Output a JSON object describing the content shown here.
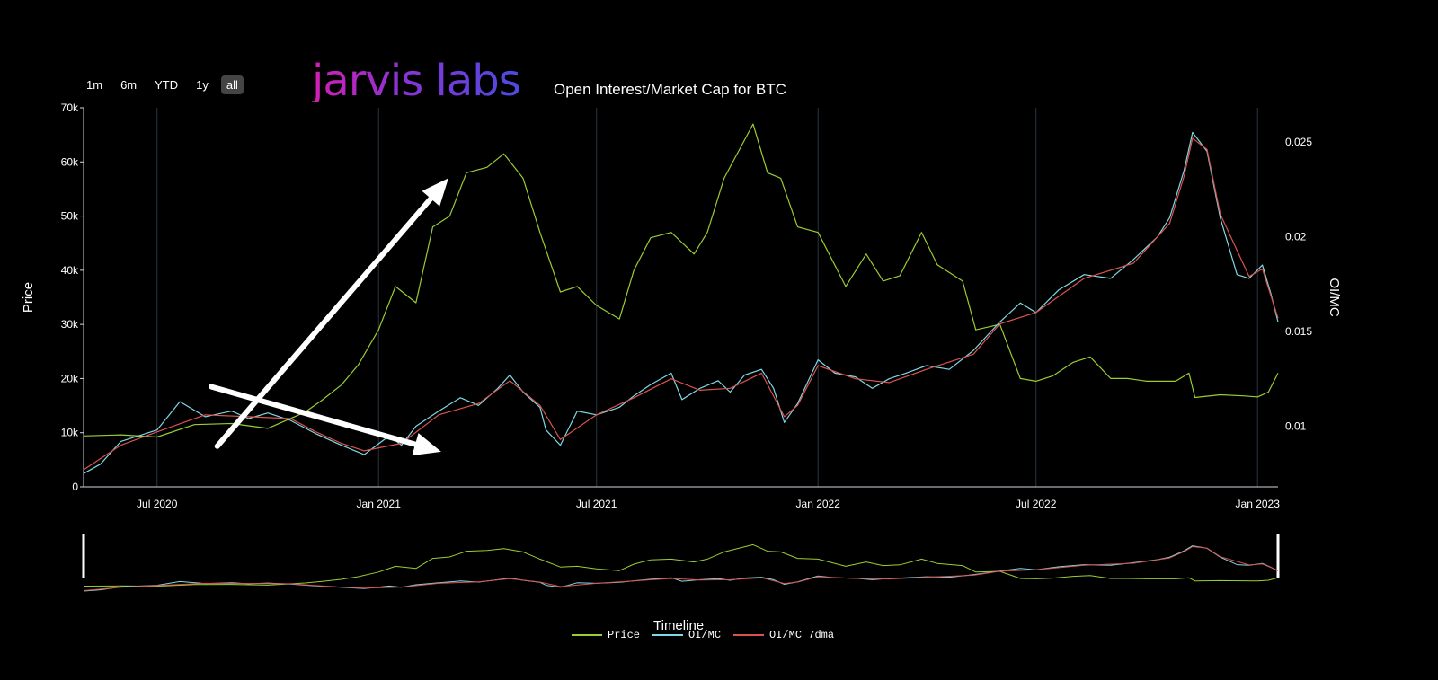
{
  "range_selector": [
    {
      "label": "1m",
      "active": false
    },
    {
      "label": "6m",
      "active": false
    },
    {
      "label": "YTD",
      "active": false
    },
    {
      "label": "1y",
      "active": false
    },
    {
      "label": "all",
      "active": true
    }
  ],
  "logo_text": "jarvis labs",
  "colors": {
    "price": "#9acd32",
    "oimc": "#7fd8e6",
    "oimc7": "#d9534f",
    "grid": "#2b3340",
    "arrow": "#ffffff"
  },
  "chart_data": {
    "type": "line",
    "title": "Open Interest/Market Cap for BTC",
    "xlabel": "Timeline",
    "ylabel": "Price",
    "y2label": "OI/MC",
    "xlim": [
      "2020-05-01",
      "2023-01-18"
    ],
    "ylim": [
      0,
      70000
    ],
    "y2lim": [
      0.0068,
      0.0268
    ],
    "x_ticks": [
      "Jul 2020",
      "Jan 2021",
      "Jul 2021",
      "Jan 2022",
      "Jul 2022",
      "Jan 2023"
    ],
    "x_tick_dates": [
      "2020-07-01",
      "2021-01-01",
      "2021-07-01",
      "2022-01-01",
      "2022-07-01",
      "2023-01-01"
    ],
    "y_ticks": [
      "0",
      "10k",
      "20k",
      "30k",
      "40k",
      "50k",
      "60k",
      "70k"
    ],
    "y_tick_values": [
      0,
      10000,
      20000,
      30000,
      40000,
      50000,
      60000,
      70000
    ],
    "y2_ticks": [
      "0.01",
      "0.015",
      "0.02",
      "0.025"
    ],
    "y2_tick_values": [
      0.01,
      0.015,
      0.02,
      0.025
    ],
    "series": [
      {
        "name": "Price",
        "axis": "y",
        "x": [
          "2020-05-01",
          "2020-06-01",
          "2020-07-01",
          "2020-08-01",
          "2020-09-01",
          "2020-10-01",
          "2020-11-01",
          "2020-11-15",
          "2020-12-01",
          "2020-12-15",
          "2021-01-01",
          "2021-01-15",
          "2021-02-01",
          "2021-02-15",
          "2021-03-01",
          "2021-03-15",
          "2021-04-01",
          "2021-04-15",
          "2021-05-01",
          "2021-05-15",
          "2021-06-01",
          "2021-06-15",
          "2021-07-01",
          "2021-07-20",
          "2021-08-01",
          "2021-08-15",
          "2021-09-01",
          "2021-09-20",
          "2021-10-01",
          "2021-10-15",
          "2021-11-08",
          "2021-11-20",
          "2021-12-01",
          "2021-12-15",
          "2022-01-01",
          "2022-01-24",
          "2022-02-10",
          "2022-02-24",
          "2022-03-10",
          "2022-03-28",
          "2022-04-10",
          "2022-05-01",
          "2022-05-12",
          "2022-06-01",
          "2022-06-18",
          "2022-07-01",
          "2022-07-15",
          "2022-08-01",
          "2022-08-15",
          "2022-09-01",
          "2022-09-15",
          "2022-10-01",
          "2022-10-25",
          "2022-11-05",
          "2022-11-10",
          "2022-12-01",
          "2022-12-20",
          "2023-01-01",
          "2023-01-10",
          "2023-01-18"
        ],
        "values": [
          9400,
          9600,
          9200,
          11500,
          11700,
          10800,
          13800,
          16000,
          18800,
          22500,
          29000,
          37000,
          34000,
          48000,
          50000,
          58000,
          59000,
          61500,
          57000,
          47000,
          36000,
          37000,
          33500,
          31000,
          40000,
          46000,
          47000,
          43000,
          47000,
          57000,
          67000,
          58000,
          57000,
          48000,
          47000,
          37000,
          43000,
          38000,
          39000,
          47000,
          41000,
          38000,
          29000,
          30000,
          20000,
          19500,
          20500,
          23000,
          24000,
          20000,
          20000,
          19500,
          19500,
          21000,
          16500,
          17000,
          16800,
          16600,
          17500,
          21000
        ]
      },
      {
        "name": "OI/MC",
        "axis": "y2",
        "x": [
          "2020-05-01",
          "2020-05-15",
          "2020-06-01",
          "2020-07-01",
          "2020-07-20",
          "2020-08-10",
          "2020-09-01",
          "2020-09-15",
          "2020-10-01",
          "2020-10-20",
          "2020-11-10",
          "2020-12-01",
          "2020-12-20",
          "2021-01-10",
          "2021-01-20",
          "2021-02-01",
          "2021-02-20",
          "2021-03-10",
          "2021-03-25",
          "2021-04-10",
          "2021-04-20",
          "2021-05-01",
          "2021-05-15",
          "2021-05-20",
          "2021-06-01",
          "2021-06-15",
          "2021-07-01",
          "2021-07-20",
          "2021-08-01",
          "2021-08-15",
          "2021-09-01",
          "2021-09-10",
          "2021-09-25",
          "2021-10-10",
          "2021-10-20",
          "2021-11-01",
          "2021-11-15",
          "2021-11-25",
          "2021-12-04",
          "2021-12-15",
          "2022-01-01",
          "2022-01-15",
          "2022-02-01",
          "2022-02-15",
          "2022-03-01",
          "2022-03-15",
          "2022-04-01",
          "2022-04-20",
          "2022-05-10",
          "2022-06-01",
          "2022-06-18",
          "2022-07-01",
          "2022-07-20",
          "2022-08-10",
          "2022-09-01",
          "2022-09-20",
          "2022-10-10",
          "2022-10-20",
          "2022-11-01",
          "2022-11-08",
          "2022-11-20",
          "2022-12-01",
          "2022-12-15",
          "2022-12-25",
          "2023-01-05",
          "2023-01-12",
          "2023-01-18"
        ],
        "values": [
          0.0075,
          0.008,
          0.0092,
          0.0098,
          0.0113,
          0.0105,
          0.0108,
          0.0104,
          0.0107,
          0.0103,
          0.0096,
          0.009,
          0.0085,
          0.0095,
          0.009,
          0.01,
          0.0108,
          0.0115,
          0.0111,
          0.012,
          0.0127,
          0.0118,
          0.011,
          0.0098,
          0.009,
          0.0108,
          0.0106,
          0.011,
          0.0116,
          0.0122,
          0.0128,
          0.0114,
          0.012,
          0.0124,
          0.0118,
          0.0127,
          0.013,
          0.012,
          0.0102,
          0.0112,
          0.0135,
          0.0128,
          0.0126,
          0.012,
          0.0125,
          0.0128,
          0.0132,
          0.013,
          0.014,
          0.0155,
          0.0165,
          0.016,
          0.0172,
          0.018,
          0.0178,
          0.0188,
          0.02,
          0.021,
          0.0235,
          0.0255,
          0.0245,
          0.021,
          0.018,
          0.0178,
          0.0185,
          0.017,
          0.0155
        ]
      },
      {
        "name": "OI/MC 7dma",
        "axis": "y2",
        "x": [
          "2020-05-01",
          "2020-06-01",
          "2020-07-01",
          "2020-08-10",
          "2020-09-15",
          "2020-10-20",
          "2020-11-10",
          "2020-12-01",
          "2020-12-20",
          "2021-01-20",
          "2021-02-20",
          "2021-03-25",
          "2021-04-20",
          "2021-05-15",
          "2021-06-01",
          "2021-07-01",
          "2021-08-01",
          "2021-09-01",
          "2021-09-25",
          "2021-10-20",
          "2021-11-15",
          "2021-12-04",
          "2021-12-15",
          "2022-01-01",
          "2022-02-01",
          "2022-03-01",
          "2022-04-01",
          "2022-05-10",
          "2022-06-01",
          "2022-07-01",
          "2022-08-10",
          "2022-09-20",
          "2022-10-20",
          "2022-11-01",
          "2022-11-08",
          "2022-11-20",
          "2022-12-01",
          "2022-12-25",
          "2023-01-05",
          "2023-01-18"
        ],
        "values": [
          0.0077,
          0.009,
          0.0097,
          0.0106,
          0.0105,
          0.0104,
          0.0097,
          0.0091,
          0.0087,
          0.0091,
          0.0106,
          0.0112,
          0.0124,
          0.0111,
          0.0093,
          0.0106,
          0.0115,
          0.0125,
          0.0119,
          0.012,
          0.0128,
          0.0105,
          0.0111,
          0.0132,
          0.0125,
          0.0123,
          0.013,
          0.0138,
          0.0154,
          0.016,
          0.0178,
          0.0186,
          0.0207,
          0.0232,
          0.0252,
          0.0246,
          0.0212,
          0.0179,
          0.0183,
          0.0157
        ]
      }
    ]
  },
  "annotations": {
    "arrows": 2
  }
}
